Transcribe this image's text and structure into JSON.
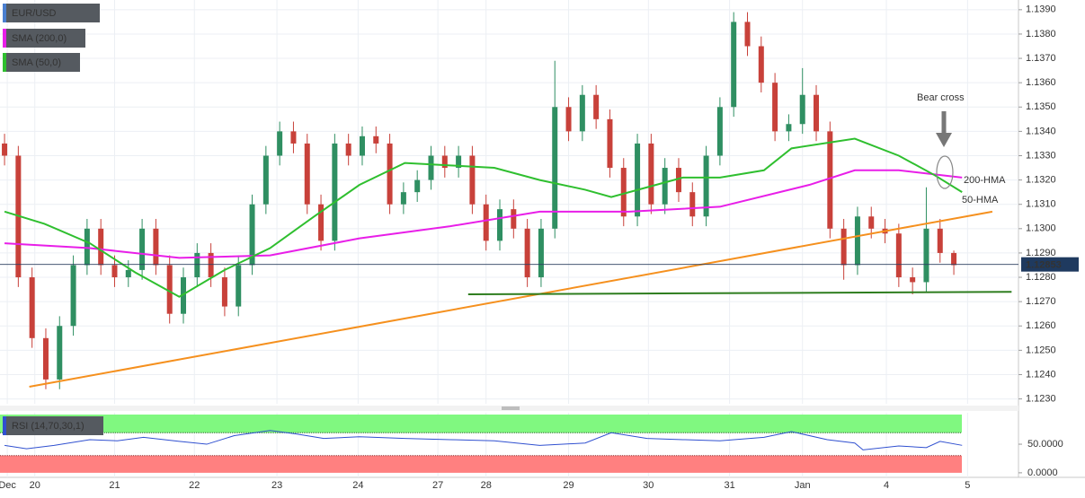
{
  "chart_data": {
    "type": "candlestick",
    "symbol": "EUR/USD",
    "up_color": "#2f8f62",
    "down_color": "#c8413a",
    "candles": {
      "open": [
        1.1335,
        1.133,
        1.128,
        1.1255,
        1.1238,
        1.126,
        1.1285,
        1.13,
        1.1285,
        1.128,
        1.1283,
        1.13,
        1.1285,
        1.1265,
        1.128,
        1.129,
        1.128,
        1.1268,
        1.1285,
        1.131,
        1.133,
        1.134,
        1.1335,
        1.131,
        1.1295,
        1.1335,
        1.133,
        1.1338,
        1.1335,
        1.131,
        1.1315,
        1.132,
        1.133,
        1.1325,
        1.133,
        1.131,
        1.1295,
        1.1308,
        1.13,
        1.128,
        1.13,
        1.135,
        1.134,
        1.1355,
        1.1345,
        1.1325,
        1.1305,
        1.1335,
        1.131,
        1.1325,
        1.1315,
        1.1305,
        1.133,
        1.135,
        1.1385,
        1.1375,
        1.136,
        1.134,
        1.1343,
        1.1355,
        1.134,
        1.13,
        1.1285,
        1.1305,
        1.13,
        1.1298,
        1.128,
        1.1278,
        1.13,
        1.129
      ],
      "high": [
        1.1339,
        1.1334,
        1.1284,
        1.1259,
        1.1264,
        1.1289,
        1.1304,
        1.1304,
        1.1289,
        1.1287,
        1.1304,
        1.1304,
        1.1289,
        1.1284,
        1.1294,
        1.1294,
        1.1284,
        1.1289,
        1.1314,
        1.1334,
        1.1344,
        1.1344,
        1.1339,
        1.1314,
        1.1339,
        1.1339,
        1.1342,
        1.1342,
        1.1339,
        1.1319,
        1.1324,
        1.1334,
        1.1334,
        1.1334,
        1.1334,
        1.1314,
        1.1312,
        1.1312,
        1.1304,
        1.1304,
        1.1369,
        1.1354,
        1.1359,
        1.1359,
        1.1349,
        1.1329,
        1.1339,
        1.1339,
        1.1329,
        1.1329,
        1.1319,
        1.1334,
        1.1354,
        1.1389,
        1.1389,
        1.1379,
        1.1364,
        1.1347,
        1.1366,
        1.1359,
        1.1344,
        1.1304,
        1.1309,
        1.1309,
        1.1304,
        1.1302,
        1.1284,
        1.1317,
        1.1304,
        1.1291
      ],
      "low": [
        1.1326,
        1.1276,
        1.1251,
        1.1234,
        1.1234,
        1.1256,
        1.1281,
        1.1281,
        1.1276,
        1.1276,
        1.1279,
        1.1281,
        1.1261,
        1.1261,
        1.1276,
        1.1276,
        1.1264,
        1.1264,
        1.1281,
        1.1306,
        1.1326,
        1.1331,
        1.1306,
        1.1291,
        1.1291,
        1.1326,
        1.1326,
        1.1331,
        1.1306,
        1.1306,
        1.1311,
        1.1316,
        1.1321,
        1.1321,
        1.1306,
        1.1291,
        1.1291,
        1.1296,
        1.1276,
        1.1276,
        1.1296,
        1.1336,
        1.1336,
        1.1341,
        1.1321,
        1.1301,
        1.1301,
        1.1306,
        1.1306,
        1.1311,
        1.1301,
        1.1301,
        1.1326,
        1.1346,
        1.1371,
        1.1356,
        1.1336,
        1.1336,
        1.1339,
        1.1336,
        1.1296,
        1.1279,
        1.1281,
        1.1296,
        1.1294,
        1.1276,
        1.1273,
        1.1274,
        1.1286,
        1.1281
      ],
      "close": [
        1.133,
        1.128,
        1.1255,
        1.1238,
        1.126,
        1.1285,
        1.13,
        1.1285,
        1.128,
        1.1283,
        1.13,
        1.1285,
        1.1265,
        1.128,
        1.129,
        1.128,
        1.1268,
        1.1285,
        1.131,
        1.133,
        1.134,
        1.1335,
        1.131,
        1.1295,
        1.1335,
        1.133,
        1.1338,
        1.1335,
        1.131,
        1.1315,
        1.132,
        1.133,
        1.1325,
        1.133,
        1.131,
        1.1295,
        1.1308,
        1.13,
        1.128,
        1.13,
        1.135,
        1.134,
        1.1355,
        1.1345,
        1.1325,
        1.1305,
        1.1335,
        1.131,
        1.1325,
        1.1315,
        1.1305,
        1.133,
        1.135,
        1.1385,
        1.1375,
        1.136,
        1.134,
        1.1343,
        1.1355,
        1.134,
        1.13,
        1.1285,
        1.1305,
        1.13,
        1.1298,
        1.128,
        1.1278,
        1.13,
        1.129,
        1.1285
      ]
    },
    "series": [
      {
        "name": "SMA (200,0)",
        "color": "#e81ee8",
        "x": [
          0,
          6.2,
          12.7,
          19.3,
          25.8,
          32.4,
          38.9,
          45.4,
          52,
          58.5,
          61.8,
          65,
          69.6
        ],
        "values": [
          1.1294,
          1.1292,
          1.1288,
          1.1289,
          1.1296,
          1.1301,
          1.1307,
          1.1307,
          1.1309,
          1.1318,
          1.1324,
          1.1324,
          1.1321
        ]
      },
      {
        "name": "SMA (50,0)",
        "color": "#2fbf2f",
        "x": [
          0,
          2.9,
          6.2,
          9.5,
          12.7,
          16,
          19.3,
          22.5,
          25.8,
          29.1,
          32.4,
          35.6,
          38.9,
          42.2,
          44.1,
          46.7,
          49.3,
          52,
          55.2,
          57.2,
          61.8,
          65,
          67.6,
          69.6
        ],
        "values": [
          1.1307,
          1.1302,
          1.1294,
          1.1282,
          1.1272,
          1.1283,
          1.1292,
          1.1305,
          1.1318,
          1.1327,
          1.1326,
          1.1325,
          1.132,
          1.1316,
          1.1313,
          1.1317,
          1.1321,
          1.1321,
          1.1324,
          1.1333,
          1.1337,
          1.133,
          1.1322,
          1.1315
        ]
      }
    ],
    "trendlines": [
      {
        "color": "#f5901e",
        "x": [
          1.8,
          71.8
        ],
        "values": [
          1.1235,
          1.1307
        ]
      },
      {
        "color": "#2e7d1e",
        "x": [
          33.7,
          73.2
        ],
        "values": [
          1.1273,
          1.1274
        ]
      }
    ],
    "last_price": 1.12853,
    "annotations": [
      {
        "text": "Bear cross",
        "color": "#777777"
      },
      {
        "text": "200-HMA",
        "color": "#e81ee8"
      },
      {
        "text": "50-HMA",
        "color": "#2fbf2f"
      }
    ],
    "xlim": [
      -0.33,
      73.7
    ],
    "xticks": [
      {
        "value": 0.2,
        "label": "Dec"
      },
      {
        "value": 2.2,
        "label": "20"
      },
      {
        "value": 8,
        "label": "21"
      },
      {
        "value": 13.8,
        "label": "22"
      },
      {
        "value": 19.8,
        "label": "23"
      },
      {
        "value": 25.7,
        "label": "24"
      },
      {
        "value": 31.5,
        "label": "27"
      },
      {
        "value": 35,
        "label": "28"
      },
      {
        "value": 41,
        "label": "29"
      },
      {
        "value": 46.8,
        "label": "30"
      },
      {
        "value": 52.7,
        "label": "31"
      },
      {
        "value": 58,
        "label": "Jan"
      },
      {
        "value": 64.1,
        "label": "4"
      },
      {
        "value": 70,
        "label": "5"
      }
    ],
    "ylim": [
      1.1228,
      1.1394
    ],
    "yticks": [
      {
        "value": 1.123,
        "label": "1.1230"
      },
      {
        "value": 1.124,
        "label": "1.1240"
      },
      {
        "value": 1.125,
        "label": "1.1250"
      },
      {
        "value": 1.126,
        "label": "1.1260"
      },
      {
        "value": 1.127,
        "label": "1.1270"
      },
      {
        "value": 1.128,
        "label": "1.1280"
      },
      {
        "value": 1.129,
        "label": "1.1290"
      },
      {
        "value": 1.13,
        "label": "1.1300"
      },
      {
        "value": 1.131,
        "label": "1.1310"
      },
      {
        "value": 1.132,
        "label": "1.1320"
      },
      {
        "value": 1.133,
        "label": "1.1330"
      },
      {
        "value": 1.134,
        "label": "1.1340"
      },
      {
        "value": 1.135,
        "label": "1.1350"
      },
      {
        "value": 1.136,
        "label": "1.1360"
      },
      {
        "value": 1.137,
        "label": "1.1370"
      },
      {
        "value": 1.138,
        "label": "1.1380"
      },
      {
        "value": 1.139,
        "label": "1.1390"
      }
    ],
    "rsi": {
      "name": "RSI (14,70,30,1)",
      "color": "#3050d0",
      "upper": 70,
      "lower": 30,
      "upper_color": "#80f880",
      "lower_color": "#ff8080",
      "x": [
        0,
        1.6,
        3.6,
        6.2,
        8.2,
        10.1,
        12.7,
        14.7,
        16.7,
        19.3,
        21.2,
        23.2,
        25.8,
        29.1,
        32.4,
        35.6,
        38.9,
        42.2,
        44.1,
        46.7,
        49.3,
        52,
        55.2,
        57.2,
        59.8,
        61.8,
        62.4,
        65,
        67,
        68,
        69.6
      ],
      "values": [
        48,
        42,
        48,
        58,
        56,
        62,
        55,
        50,
        65,
        74,
        68,
        60,
        63,
        60,
        58,
        56,
        48,
        52,
        70,
        60,
        58,
        56,
        62,
        72,
        58,
        52,
        40,
        47,
        44,
        55,
        48
      ],
      "ylim": [
        -8,
        105
      ],
      "yticks": [
        {
          "value": 50,
          "label": "50.0000"
        },
        {
          "value": 0,
          "label": "0.0000"
        }
      ]
    }
  }
}
